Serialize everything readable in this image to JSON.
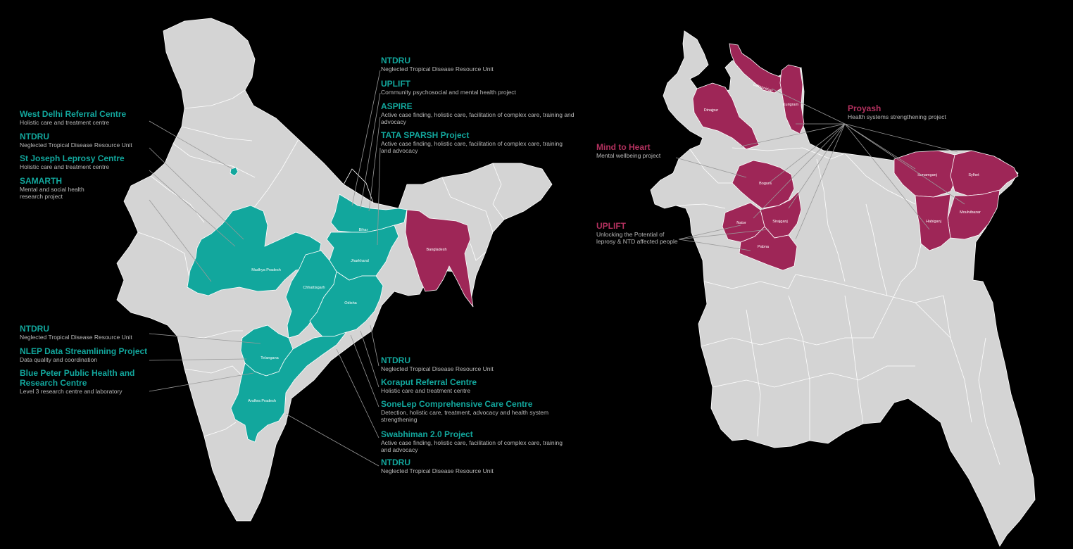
{
  "colors": {
    "background": "#000000",
    "land": "#d4d4d4",
    "border": "#ffffff",
    "india_highlight": "#12a79d",
    "bangladesh_highlight": "#9e2657",
    "leader": "#9a9a9a"
  },
  "india": {
    "left_labels": [
      {
        "title": "West Delhi Referral Centre",
        "desc": "Holistic care and treatment centre"
      },
      {
        "title": "NTDRU",
        "desc": "Neglected Tropical Disease Resource Unit"
      },
      {
        "title": "St Joseph Leprosy Centre",
        "desc": "Holistic care and treatment centre"
      },
      {
        "title": "SAMARTH",
        "desc": "Mental and social health research project"
      },
      {
        "title": "NTDRU",
        "desc": "Neglected Tropical Disease Resource Unit"
      },
      {
        "title": "NLEP Data Streamlining Project",
        "desc": "Data quality and coordination"
      },
      {
        "title": "Blue Peter Public Health and Research Centre",
        "desc": "Level 3 research centre and laboratory"
      }
    ],
    "top_right_labels": [
      {
        "title": "NTDRU",
        "desc": "Neglected Tropical Disease Resource Unit"
      },
      {
        "title": "UPLIFT",
        "desc": "Community psychosocial and mental health project"
      },
      {
        "title": "ASPIRE",
        "desc": "Active case finding, holistic care, facilitation of complex care, training and advocacy"
      },
      {
        "title": "TATA SPARSH Project",
        "desc": "Active case finding, holistic care, facilitation of complex care, training and advocacy"
      }
    ],
    "bottom_right_labels": [
      {
        "title": "NTDRU",
        "desc": "Neglected Tropical Disease Resource Unit"
      },
      {
        "title": "Koraput Referral Centre",
        "desc": "Holistic care and treatment centre"
      },
      {
        "title": "SoneLep Comprehensive Care Centre",
        "desc": "Detection, holistic care, treatment, advocacy and health system strengthening"
      },
      {
        "title": "Swabhiman 2.0 Project",
        "desc": "Active case finding, holistic care, facilitation of complex care, training and advocacy"
      },
      {
        "title": "NTDRU",
        "desc": "Neglected Tropical Disease Resource Unit"
      }
    ],
    "regions": [
      "Bihar",
      "Jharkhand",
      "Madhya Pradesh",
      "Chhattisgarh",
      "Odisha",
      "Telangana",
      "Andhra Pradesh",
      "Bangladesh"
    ]
  },
  "bangladesh": {
    "labels": [
      {
        "title": "Proyash",
        "desc": "Health systems strengthening project"
      },
      {
        "title": "Mind to Heart",
        "desc": "Mental wellbeing project"
      },
      {
        "title": "UPLIFT",
        "desc": "Unlocking the Potential of leprosy & NTD affected people"
      }
    ],
    "districts": [
      "Lalmonirhat",
      "Dinajpur",
      "Kurigram",
      "Bogura",
      "Sirajganj",
      "Nator",
      "Pabna",
      "Sunamganj",
      "Sylhet",
      "Moulvibazar",
      "Habiganj"
    ]
  }
}
